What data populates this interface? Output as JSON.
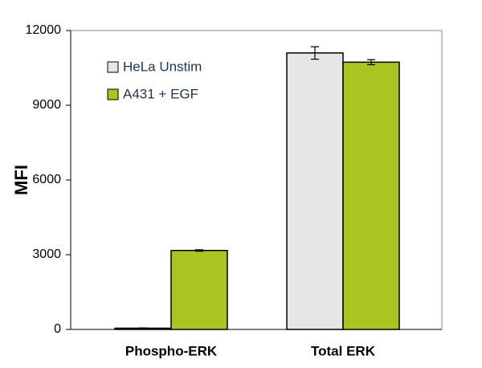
{
  "chart_data": {
    "type": "bar",
    "y_label": "MFI",
    "categories": [
      "Phospho-ERK",
      "Total ERK"
    ],
    "series": [
      {
        "name": "HeLa Unstim",
        "color": "#e6e6e6",
        "values": [
          50,
          11100
        ],
        "errors": [
          10,
          250
        ]
      },
      {
        "name": "A431 + EGF",
        "color": "#a8c520",
        "values": [
          3170,
          10730
        ],
        "errors": [
          30,
          100
        ]
      }
    ],
    "ylim": [
      0,
      12000
    ],
    "yticks": [
      0,
      3000,
      6000,
      9000,
      12000
    ],
    "grid": false,
    "legend": "upper left"
  }
}
